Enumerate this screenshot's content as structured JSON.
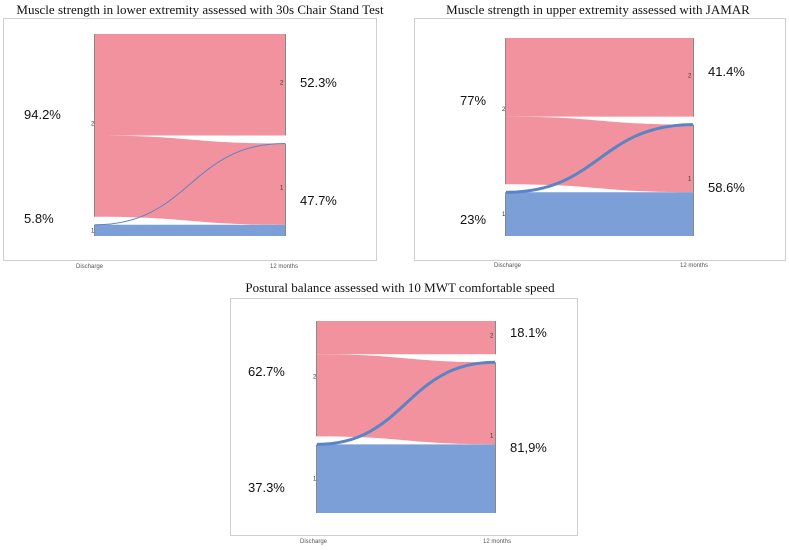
{
  "colors": {
    "group2": "#f3929f",
    "group1": "#7b9fd6",
    "curve": "#5b84c4"
  },
  "figure_titles": [
    "Muscle strength in lower extremity assessed with  30s Chair Stand Test",
    "Muscle strength in upper extremity assessed with JAMAR",
    "Postural balance assessed with 10 MWT comfortable speed"
  ],
  "chart_data": [
    {
      "type": "alluvial",
      "title": "Muscle strength in lower extremity assessed with  30s Chair Stand Test",
      "x_axis": [
        "Discharge",
        "12 months"
      ],
      "categories": [
        "2",
        "1"
      ],
      "left": {
        "2": 94.2,
        "1": 5.8
      },
      "right": {
        "2": 52.3,
        "1": 47.7
      },
      "left_labels": {
        "2": "94.2%",
        "1": "5.8%"
      },
      "right_labels": {
        "2": "52.3%",
        "1": "47.7%"
      },
      "flows": [
        {
          "from": "2",
          "to": "2",
          "value": 52.3
        },
        {
          "from": "2",
          "to": "1",
          "value": 41.9
        },
        {
          "from": "1",
          "to": "1",
          "value": 5.8
        }
      ]
    },
    {
      "type": "alluvial",
      "title": "Muscle strength in upper extremity assessed with JAMAR",
      "x_axis": [
        "Discharge",
        "12 months"
      ],
      "categories": [
        "2",
        "1"
      ],
      "left": {
        "2": 77,
        "1": 23
      },
      "right": {
        "2": 41.4,
        "1": 58.6
      },
      "left_labels": {
        "2": "77%",
        "1": "23%"
      },
      "right_labels": {
        "2": "41.4%",
        "1": "58.6%"
      },
      "flows": [
        {
          "from": "2",
          "to": "2",
          "value": 41.4
        },
        {
          "from": "2",
          "to": "1",
          "value": 35.6
        },
        {
          "from": "1",
          "to": "1",
          "value": 23
        }
      ]
    },
    {
      "type": "alluvial",
      "title": "Postural balance assessed with 10 MWT comfortable speed",
      "x_axis": [
        "Discharge",
        "12 months"
      ],
      "categories": [
        "2",
        "1"
      ],
      "left": {
        "2": 62.7,
        "1": 37.3
      },
      "right": {
        "2": 18.1,
        "1": 81.9
      },
      "left_labels": {
        "2": "62.7%",
        "1": "37.3%"
      },
      "right_labels": {
        "2": "18.1%",
        "1": "81,9%"
      },
      "flows": [
        {
          "from": "2",
          "to": "2",
          "value": 18.1
        },
        {
          "from": "2",
          "to": "1",
          "value": 44.6
        },
        {
          "from": "1",
          "to": "1",
          "value": 37.3
        }
      ]
    }
  ]
}
